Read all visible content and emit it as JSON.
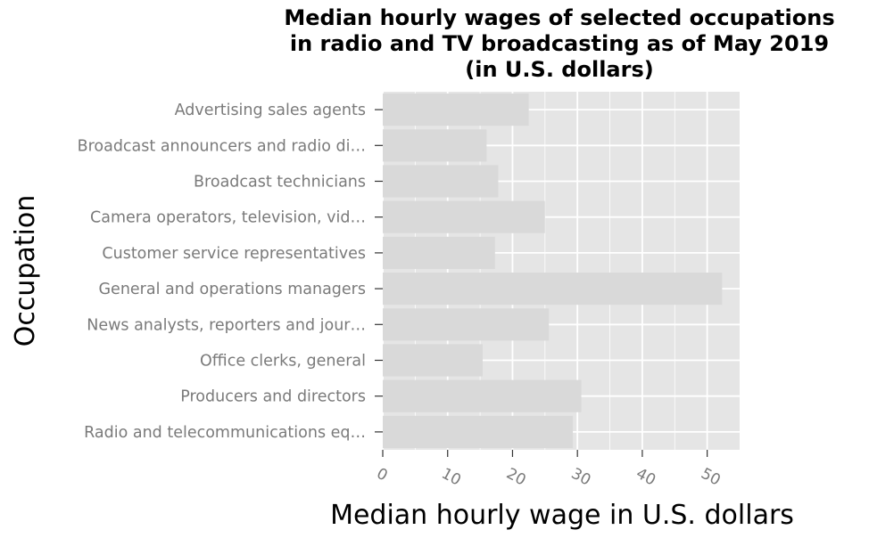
{
  "chart_data": {
    "type": "bar",
    "orientation": "horizontal",
    "title_lines": [
      "Median hourly wages of selected occupations",
      "in radio and TV broadcasting as of May 2019",
      "(in U.S. dollars)"
    ],
    "xlabel": "Median hourly wage in U.S. dollars",
    "ylabel": "Occupation",
    "categories": [
      "Advertising sales agents",
      "Broadcast announcers and radio di…",
      "Broadcast technicians",
      "Camera operators, television, vid…",
      "Customer service representatives",
      "General and operations managers",
      "News analysts, reporters and jour…",
      "Office clerks, general",
      "Producers and directors",
      "Radio and telecommunications eq…"
    ],
    "values": [
      22.5,
      16.0,
      17.8,
      25.0,
      17.3,
      52.3,
      25.6,
      15.4,
      30.6,
      29.3
    ],
    "xlim": [
      0,
      55
    ],
    "xticks": [
      0,
      10,
      20,
      30,
      40,
      50
    ],
    "grid": true,
    "legend": "none",
    "colors": {
      "panel": "#e5e5e5",
      "bar": "#d9d9d9",
      "grid": "#ffffff",
      "tick_text": "#7a7a7a",
      "title_text": "#000000"
    }
  }
}
